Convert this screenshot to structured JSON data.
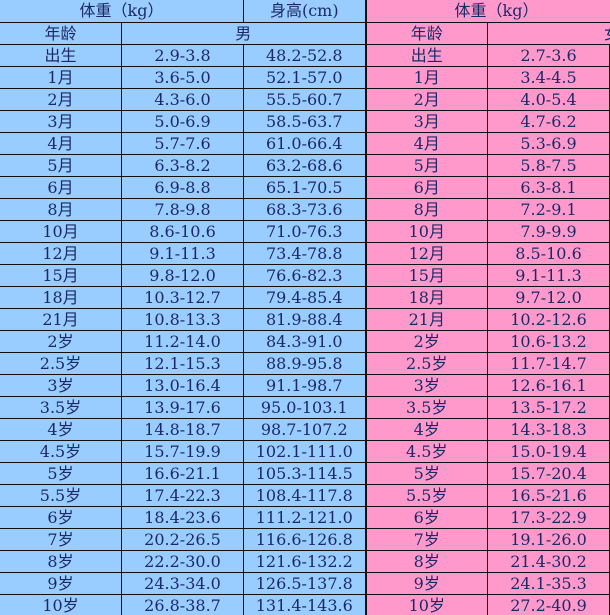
{
  "header": {
    "boy_weight": "体重（kg）",
    "boy_height": "身高(cm)",
    "girl_weight": "体重（kg）",
    "age_label": "年龄",
    "boy_label": "男",
    "girl_age_label": "年龄",
    "girl_label": "女"
  },
  "colors": {
    "boy": "#99ccff",
    "girl": "#ff99cc"
  },
  "rows": [
    {
      "age": "出生",
      "bw": "2.9-3.8",
      "bh": "48.2-52.8",
      "gw": "2.7-3.6"
    },
    {
      "age": "1月",
      "bw": "3.6-5.0",
      "bh": "52.1-57.0",
      "gw": "3.4-4.5"
    },
    {
      "age": "2月",
      "bw": "4.3-6.0",
      "bh": "55.5-60.7",
      "gw": "4.0-5.4"
    },
    {
      "age": "3月",
      "bw": "5.0-6.9",
      "bh": "58.5-63.7",
      "gw": "4.7-6.2"
    },
    {
      "age": "4月",
      "bw": "5.7-7.6",
      "bh": "61.0-66.4",
      "gw": "5.3-6.9"
    },
    {
      "age": "5月",
      "bw": "6.3-8.2",
      "bh": "63.2-68.6",
      "gw": "5.8-7.5"
    },
    {
      "age": "6月",
      "bw": "6.9-8.8",
      "bh": "65.1-70.5",
      "gw": "6.3-8.1"
    },
    {
      "age": "8月",
      "bw": "7.8-9.8",
      "bh": "68.3-73.6",
      "gw": "7.2-9.1"
    },
    {
      "age": "10月",
      "bw": "8.6-10.6",
      "bh": "71.0-76.3",
      "gw": "7.9-9.9"
    },
    {
      "age": "12月",
      "bw": "9.1-11.3",
      "bh": "73.4-78.8",
      "gw": "8.5-10.6"
    },
    {
      "age": "15月",
      "bw": "9.8-12.0",
      "bh": "76.6-82.3",
      "gw": "9.1-11.3"
    },
    {
      "age": "18月",
      "bw": "10.3-12.7",
      "bh": "79.4-85.4",
      "gw": "9.7-12.0"
    },
    {
      "age": "21月",
      "bw": "10.8-13.3",
      "bh": "81.9-88.4",
      "gw": "10.2-12.6"
    },
    {
      "age": "2岁",
      "bw": "11.2-14.0",
      "bh": "84.3-91.0",
      "gw": "10.6-13.2"
    },
    {
      "age": "2.5岁",
      "bw": "12.1-15.3",
      "bh": "88.9-95.8",
      "gw": "11.7-14.7"
    },
    {
      "age": "3岁",
      "bw": "13.0-16.4",
      "bh": "91.1-98.7",
      "gw": "12.6-16.1"
    },
    {
      "age": "3.5岁",
      "bw": "13.9-17.6",
      "bh": "95.0-103.1",
      "gw": "13.5-17.2"
    },
    {
      "age": "4岁",
      "bw": "14.8-18.7",
      "bh": "98.7-107.2",
      "gw": "14.3-18.3"
    },
    {
      "age": "4.5岁",
      "bw": "15.7-19.9",
      "bh": "102.1-111.0",
      "gw": "15.0-19.4"
    },
    {
      "age": "5岁",
      "bw": "16.6-21.1",
      "bh": "105.3-114.5",
      "gw": "15.7-20.4"
    },
    {
      "age": "5.5岁",
      "bw": "17.4-22.3",
      "bh": "108.4-117.8",
      "gw": "16.5-21.6"
    },
    {
      "age": "6岁",
      "bw": "18.4-23.6",
      "bh": "111.2-121.0",
      "gw": "17.3-22.9"
    },
    {
      "age": "7岁",
      "bw": "20.2-26.5",
      "bh": "116.6-126.8",
      "gw": "19.1-26.0"
    },
    {
      "age": "8岁",
      "bw": "22.2-30.0",
      "bh": "121.6-132.2",
      "gw": "21.4-30.2"
    },
    {
      "age": "9岁",
      "bw": "24.3-34.0",
      "bh": "126.5-137.8",
      "gw": "24.1-35.3"
    },
    {
      "age": "10岁",
      "bw": "26.8-38.7",
      "bh": "131.4-143.6",
      "gw": "27.2-40.9"
    }
  ]
}
